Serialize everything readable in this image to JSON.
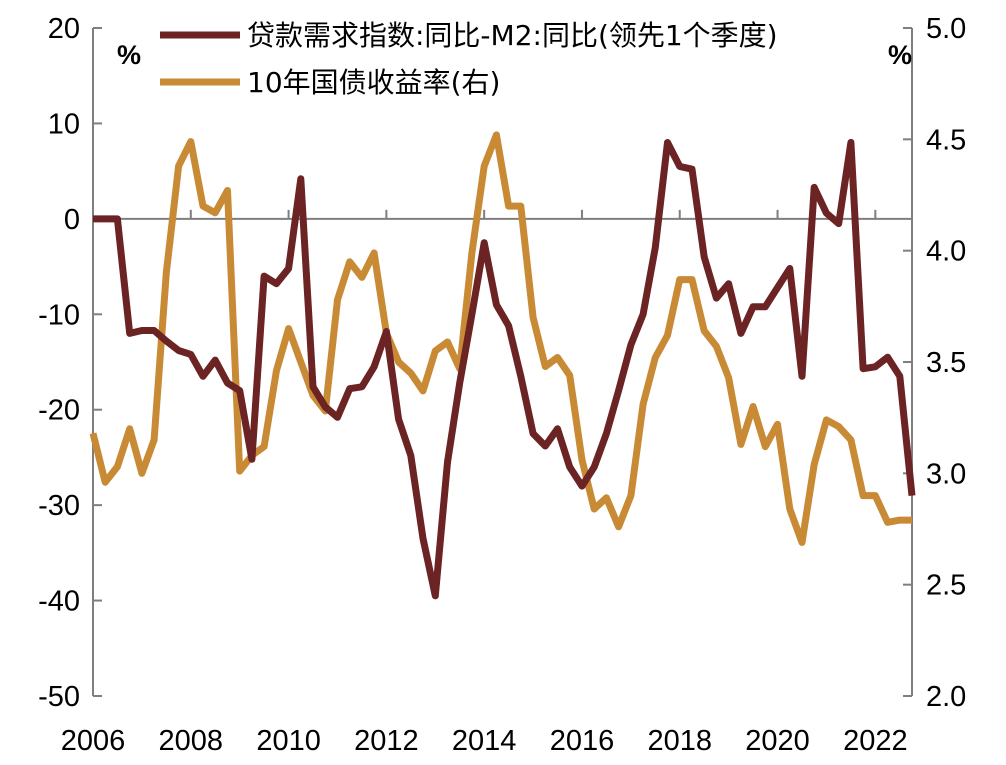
{
  "chart_data": {
    "type": "line",
    "left_unit": "%",
    "right_unit": "%",
    "x_ticks": [
      "2006",
      "2008",
      "2010",
      "2012",
      "2014",
      "2016",
      "2018",
      "2020",
      "2022"
    ],
    "xlim": [
      2006.0,
      2022.75
    ],
    "left_axis": {
      "ylim": [
        -50,
        20
      ],
      "ticks": [
        "20",
        "10",
        "0",
        "-10",
        "-20",
        "-30",
        "-40",
        "-50"
      ]
    },
    "right_axis": {
      "ylim": [
        2.0,
        5.0
      ],
      "ticks": [
        "5.0",
        "4.5",
        "4.0",
        "3.5",
        "3.0",
        "2.5",
        "2.0"
      ]
    },
    "grid": false,
    "legend_position": "top",
    "series": [
      {
        "name": "贷款需求指数:同比-M2:同比(领先1个季度)",
        "axis": "left",
        "color": "#6b2323",
        "x": [
          2006.0,
          2006.25,
          2006.5,
          2006.75,
          2007.0,
          2007.25,
          2007.5,
          2007.75,
          2008.0,
          2008.25,
          2008.5,
          2008.75,
          2009.0,
          2009.25,
          2009.5,
          2009.75,
          2010.0,
          2010.25,
          2010.5,
          2010.75,
          2011.0,
          2011.25,
          2011.5,
          2011.75,
          2012.0,
          2012.25,
          2012.5,
          2012.75,
          2013.0,
          2013.25,
          2013.5,
          2013.75,
          2014.0,
          2014.25,
          2014.5,
          2014.75,
          2015.0,
          2015.25,
          2015.5,
          2015.75,
          2016.0,
          2016.25,
          2016.5,
          2016.75,
          2017.0,
          2017.25,
          2017.5,
          2017.75,
          2018.0,
          2018.25,
          2018.5,
          2018.75,
          2019.0,
          2019.25,
          2019.5,
          2019.75,
          2020.0,
          2020.25,
          2020.5,
          2020.75,
          2021.0,
          2021.25,
          2021.5,
          2021.75,
          2022.0,
          2022.25,
          2022.5,
          2022.75
        ],
        "values": [
          0,
          0,
          0,
          -12,
          -11.7,
          -11.7,
          -12.8,
          -13.8,
          -14.2,
          -16.5,
          -14.8,
          -17.2,
          -18,
          -25.2,
          -6,
          -6.8,
          -5.2,
          4.2,
          -17.6,
          -19.7,
          -20.8,
          -17.8,
          -17.6,
          -15.5,
          -11.8,
          -21,
          -24.8,
          -33.5,
          -39.5,
          -25.5,
          -17.2,
          -10,
          -2.5,
          -9,
          -11.2,
          -16.5,
          -22.5,
          -23.8,
          -22,
          -26,
          -28,
          -26,
          -22.5,
          -18,
          -13.2,
          -10,
          -3,
          8,
          5.5,
          5.2,
          -4,
          -8.3,
          -6.8,
          -12,
          -9.2,
          -9.2,
          -7.2,
          -5.2,
          -16.5,
          3.3,
          0.6,
          -0.5,
          8,
          -15.7,
          -15.5,
          -14.5,
          -16.5,
          -29
        ]
      },
      {
        "name": "10年国债收益率(右)",
        "axis": "right",
        "color": "#c98a35",
        "x": [
          2006.0,
          2006.25,
          2006.5,
          2006.75,
          2007.0,
          2007.25,
          2007.5,
          2007.75,
          2008.0,
          2008.25,
          2008.5,
          2008.75,
          2009.0,
          2009.25,
          2009.5,
          2009.75,
          2010.0,
          2010.25,
          2010.5,
          2010.75,
          2011.0,
          2011.25,
          2011.5,
          2011.75,
          2012.0,
          2012.25,
          2012.5,
          2012.75,
          2013.0,
          2013.25,
          2013.5,
          2013.75,
          2014.0,
          2014.25,
          2014.5,
          2014.75,
          2015.0,
          2015.25,
          2015.5,
          2015.75,
          2016.0,
          2016.25,
          2016.5,
          2016.75,
          2017.0,
          2017.25,
          2017.5,
          2017.75,
          2018.0,
          2018.25,
          2018.5,
          2018.75,
          2019.0,
          2019.25,
          2019.5,
          2019.75,
          2020.0,
          2020.25,
          2020.5,
          2020.75,
          2021.0,
          2021.25,
          2021.5,
          2021.75,
          2022.0,
          2022.25,
          2022.5,
          2022.75
        ],
        "values": [
          3.18,
          2.96,
          3.03,
          3.2,
          3.0,
          3.15,
          3.9,
          4.38,
          4.49,
          4.2,
          4.17,
          4.27,
          3.01,
          3.08,
          3.12,
          3.46,
          3.65,
          3.5,
          3.35,
          3.28,
          3.78,
          3.95,
          3.88,
          3.99,
          3.63,
          3.5,
          3.45,
          3.37,
          3.55,
          3.59,
          3.47,
          3.99,
          4.38,
          4.52,
          4.2,
          4.2,
          3.7,
          3.48,
          3.52,
          3.44,
          3.06,
          2.84,
          2.89,
          2.76,
          2.9,
          3.31,
          3.52,
          3.62,
          3.87,
          3.87,
          3.64,
          3.57,
          3.43,
          3.13,
          3.3,
          3.12,
          3.22,
          2.84,
          2.69,
          3.04,
          3.24,
          3.21,
          3.15,
          2.9,
          2.9,
          2.78,
          2.79,
          2.79
        ]
      }
    ]
  }
}
